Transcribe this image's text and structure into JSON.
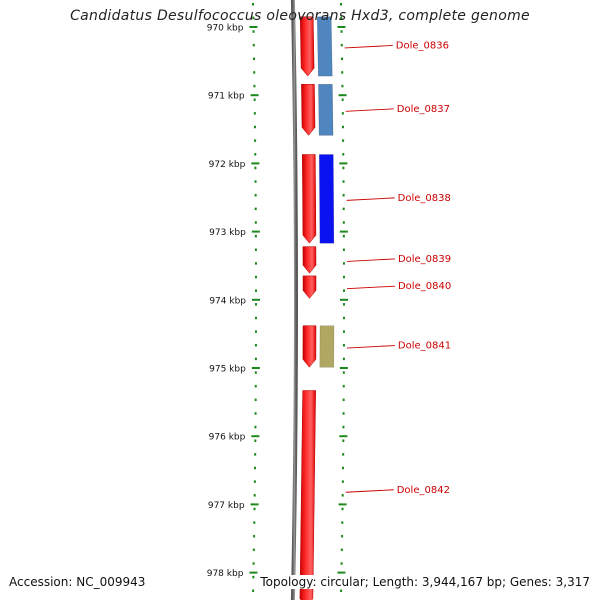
{
  "title": "Candidatus Desulfococcus oleovorans Hxd3, complete genome",
  "footer": {
    "accession": "Accession: NC_009943",
    "topology": "Topology: circular; Length: 3,944,167 bp; Genes: 3,317"
  },
  "axis": {
    "unit": "kbp",
    "ticks": [
      {
        "label": "970 kbp",
        "kbp": 970
      },
      {
        "label": "971 kbp",
        "kbp": 971
      },
      {
        "label": "972 kbp",
        "kbp": 972
      },
      {
        "label": "973 kbp",
        "kbp": 973
      },
      {
        "label": "974 kbp",
        "kbp": 974
      },
      {
        "label": "975 kbp",
        "kbp": 975
      },
      {
        "label": "976 kbp",
        "kbp": 976
      },
      {
        "label": "977 kbp",
        "kbp": 977
      },
      {
        "label": "978 kbp",
        "kbp": 978
      }
    ]
  },
  "genes": [
    {
      "label": "Dole_0836",
      "start_kbp": 969.85,
      "end_kbp": 970.72,
      "strand": "+",
      "product_color": "#4f86bf"
    },
    {
      "label": "Dole_0837",
      "start_kbp": 970.84,
      "end_kbp": 971.59,
      "strand": "+",
      "product_color": "#4f86bf"
    },
    {
      "label": "Dole_0838",
      "start_kbp": 971.87,
      "end_kbp": 973.17,
      "strand": "+",
      "product_color": "#0a12f2"
    },
    {
      "label": "Dole_0839",
      "start_kbp": 973.22,
      "end_kbp": 973.61,
      "strand": "+",
      "product_color": null
    },
    {
      "label": "Dole_0840",
      "start_kbp": 973.65,
      "end_kbp": 973.98,
      "strand": "+",
      "product_color": null
    },
    {
      "label": "Dole_0841",
      "start_kbp": 974.38,
      "end_kbp": 974.99,
      "strand": "+",
      "product_color": "#b0a763"
    },
    {
      "label": "Dole_0842",
      "start_kbp": 975.33,
      "end_kbp": 978.5,
      "strand": "+",
      "product_color": null
    }
  ],
  "colors": {
    "gene": "#ff0000",
    "label": "#cc0000",
    "tick": "#1b8a1b",
    "backbone": "#808080",
    "tick_label": "#111111"
  }
}
